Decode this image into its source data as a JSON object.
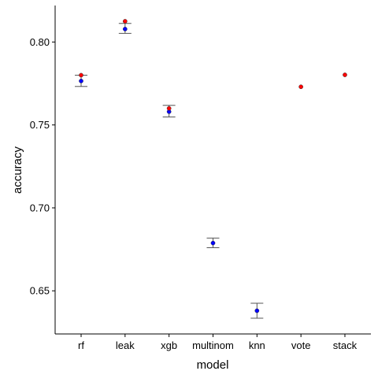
{
  "chart_data": {
    "type": "scatter",
    "title": "",
    "xlabel": "model",
    "ylabel": "accuracy",
    "categories": [
      "rf",
      "leak",
      "xgb",
      "multinom",
      "knn",
      "vote",
      "stack"
    ],
    "ylim": [
      0.624,
      0.822
    ],
    "yticks": [
      0.65,
      0.7,
      0.75,
      0.8
    ],
    "ytick_labels": [
      "0.65",
      "0.70",
      "0.75",
      "0.80"
    ],
    "grid": false,
    "legend": "none",
    "series": [
      {
        "color": "#0000ff",
        "values": [
          0.7765,
          0.8078,
          0.758,
          0.6788,
          0.638,
          null,
          null
        ],
        "error_low": [
          0.7732,
          0.8052,
          0.7548,
          0.676,
          0.6335,
          null,
          null
        ],
        "error_high": [
          0.78,
          0.8112,
          0.7618,
          0.6818,
          0.6425,
          null,
          null
        ]
      },
      {
        "color": "#ff0000",
        "values": [
          0.78,
          0.8125,
          0.76,
          null,
          null,
          0.773,
          0.7802
        ]
      }
    ]
  }
}
